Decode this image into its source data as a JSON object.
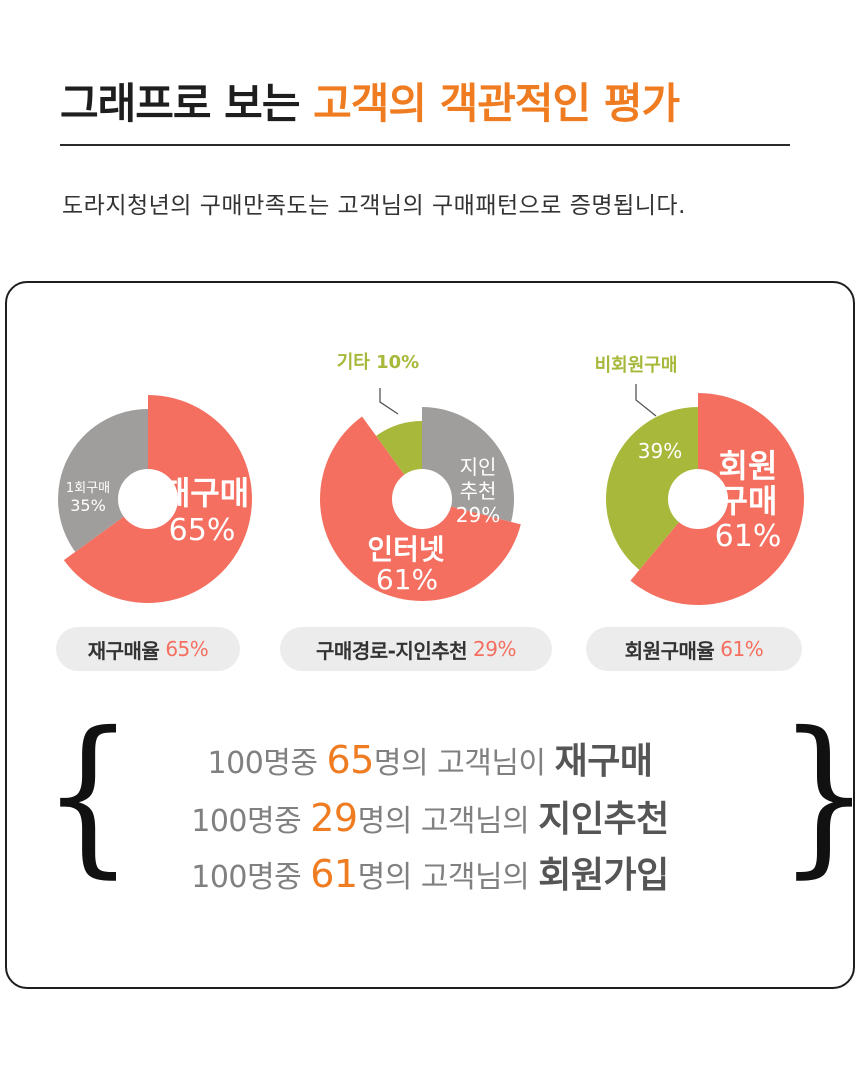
{
  "header": {
    "title_plain": "그래프로 보는 ",
    "title_accent": "고객의 객관적인 평가",
    "subtitle": "도라지청년의 구매만족도는 고객님의 구매패턴으로 증명됩니다."
  },
  "colors": {
    "accent": "#f07c22",
    "coral": "#f46f5f",
    "gray": "#a09e9d",
    "olive": "#a8b83a"
  },
  "chart_data": [
    {
      "type": "pie",
      "title": "",
      "slices": [
        {
          "label": "재구매",
          "value": 65,
          "display": "65%",
          "color": "#f46f5f"
        },
        {
          "label": "1회구매",
          "value": 35,
          "display": "35%",
          "color": "#a09e9d"
        }
      ],
      "caption_label": "재구매율",
      "caption_value": "65%"
    },
    {
      "type": "pie",
      "title": "",
      "slices": [
        {
          "label": "지인추천",
          "value": 29,
          "display": "29%",
          "color": "#a09e9d"
        },
        {
          "label": "인터넷",
          "value": 61,
          "display": "61%",
          "color": "#f46f5f"
        },
        {
          "label": "기타",
          "value": 10,
          "display": "10%",
          "color": "#a8b83a"
        }
      ],
      "caption_label": "구매경로-지인추천",
      "caption_value": "29%"
    },
    {
      "type": "pie",
      "title": "",
      "slices": [
        {
          "label": "회원구매",
          "value": 61,
          "display": "61%",
          "color": "#f46f5f"
        },
        {
          "label": "비회원구매",
          "value": 39,
          "display": "39%",
          "color": "#a8b83a"
        }
      ],
      "caption_label": "회원구매율",
      "caption_value": "61%"
    }
  ],
  "callouts": {
    "chart2_other": "기타 10%",
    "chart3_nonmember": "비회원구매"
  },
  "statements": [
    {
      "prefix": "100명중 ",
      "num": "65",
      "middle": "명의 고객님이 ",
      "emph": "재구매"
    },
    {
      "prefix": "100명중 ",
      "num": "29",
      "middle": "명의 고객님의 ",
      "emph": "지인추천"
    },
    {
      "prefix": "100명중 ",
      "num": "61",
      "middle": "명의 고객님의 ",
      "emph": "회원가입"
    }
  ],
  "braces": {
    "open": "{",
    "close": "}"
  }
}
